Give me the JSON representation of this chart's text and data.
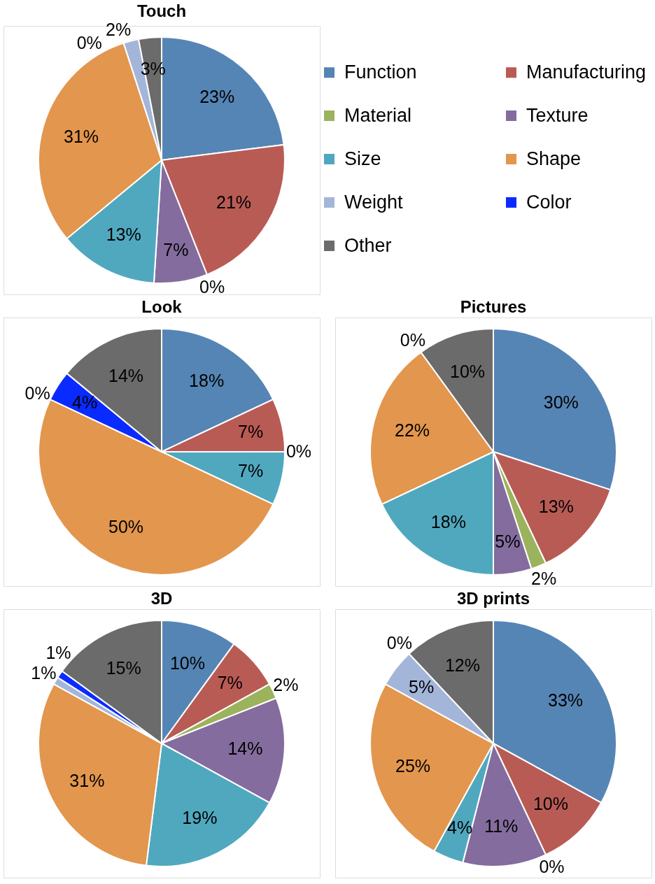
{
  "chart_data": [
    {
      "type": "pie",
      "title": "Touch",
      "categories": [
        "Function",
        "Manufacturing",
        "Material",
        "Texture",
        "Size",
        "Shape",
        "Weight",
        "Color",
        "Other"
      ],
      "values": [
        23,
        21,
        0,
        7,
        13,
        31,
        2,
        0,
        3
      ],
      "value_labels": [
        "23%",
        "21%",
        "0%",
        "7%",
        "13%",
        "31%",
        "2%",
        "0%",
        "3%"
      ],
      "colors": [
        "#5585b5",
        "#b95b55",
        "#9bb35c",
        "#846c9e",
        "#50a8bf",
        "#e3964d",
        "#a3b6d9",
        "#0a2bff",
        "#6b6b6b"
      ],
      "legend": "right"
    },
    {
      "type": "pie",
      "title": "Look",
      "categories": [
        null,
        null,
        null,
        null,
        null,
        null,
        null,
        null,
        null
      ],
      "values": [
        18,
        7,
        0,
        0,
        7,
        50,
        0,
        4,
        14
      ],
      "value_labels": [
        "18%",
        "7%",
        "0%",
        null,
        "7%",
        "50%",
        "0%",
        "4%",
        "14%"
      ],
      "colors": [
        "#5585b5",
        "#b95b55",
        "#9bb35c",
        "#846c9e",
        "#50a8bf",
        "#e3964d",
        "#a3b6d9",
        "#0a2bff",
        "#6b6b6b"
      ]
    },
    {
      "type": "pie",
      "title": "Pictures",
      "categories": [
        null,
        null,
        null,
        null,
        null,
        null,
        null,
        null,
        null
      ],
      "values": [
        30,
        13,
        2,
        5,
        18,
        22,
        0,
        0,
        10
      ],
      "value_labels": [
        "30%",
        "13%",
        "2%",
        "5%",
        "18%",
        "22%",
        "0%",
        null,
        "10%"
      ],
      "colors": [
        "#5585b5",
        "#b95b55",
        "#9bb35c",
        "#846c9e",
        "#50a8bf",
        "#e3964d",
        "#a3b6d9",
        "#0a2bff",
        "#6b6b6b"
      ]
    },
    {
      "type": "pie",
      "title": "3D",
      "categories": [
        null,
        null,
        null,
        null,
        null,
        null,
        null,
        null,
        null
      ],
      "values": [
        10,
        7,
        2,
        14,
        19,
        31,
        1,
        1,
        15
      ],
      "value_labels": [
        "10%",
        "7%",
        "2%",
        "14%",
        "19%",
        "31%",
        "1%",
        "1%",
        "15%"
      ],
      "colors": [
        "#5585b5",
        "#b95b55",
        "#9bb35c",
        "#846c9e",
        "#50a8bf",
        "#e3964d",
        "#a3b6d9",
        "#0a2bff",
        "#6b6b6b"
      ]
    },
    {
      "type": "pie",
      "title": "3D prints",
      "categories": [
        null,
        null,
        null,
        null,
        null,
        null,
        null,
        null,
        null
      ],
      "values": [
        33,
        10,
        0,
        11,
        4,
        25,
        5,
        0,
        12
      ],
      "value_labels": [
        "33%",
        "10%",
        "0%",
        "11%",
        "4%",
        "25%",
        "5%",
        "0%",
        "12%"
      ],
      "colors": [
        "#5585b5",
        "#b95b55",
        "#9bb35c",
        "#846c9e",
        "#50a8bf",
        "#e3964d",
        "#a3b6d9",
        "#0a2bff",
        "#6b6b6b"
      ]
    }
  ]
}
